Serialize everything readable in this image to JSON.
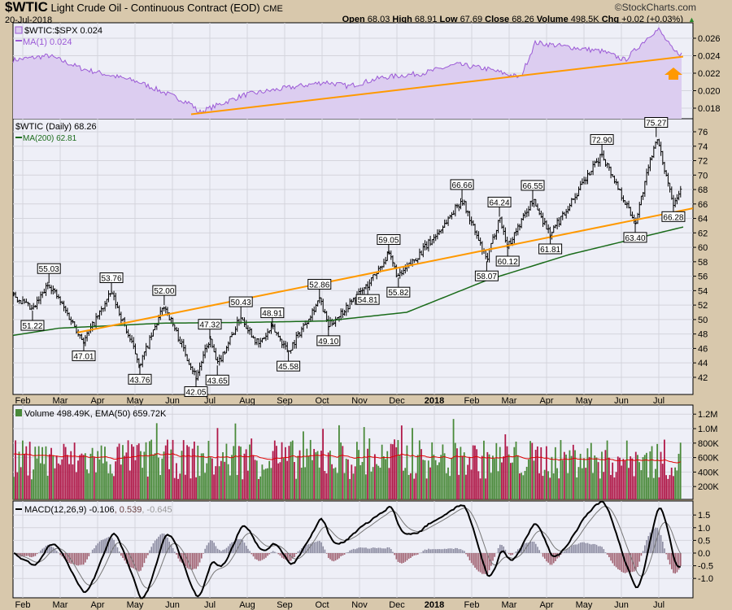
{
  "header": {
    "symbol": "$WTIC",
    "name": "Light Crude Oil - Continuous Contract (EOD)",
    "exchange": "CME",
    "date": "20-Jul-2018",
    "copyright": "©StockCharts.com",
    "quote": {
      "open_label": "Open",
      "open": "68.03",
      "high_label": "High",
      "high": "68.91",
      "low_label": "Low",
      "low": "67.69",
      "close_label": "Close",
      "close": "68.26",
      "volume_label": "Volume",
      "volume": "498.5K",
      "chg_label": "Chg",
      "chg": "+0.02 (+0.03%)"
    }
  },
  "colors": {
    "bg": "#d8c8ac",
    "panel": "#eeeff7",
    "ratio": "#9b59d6",
    "ratio_fill": "#dccdf0",
    "trend": "#ff9900",
    "ma200": "#1a6b1a",
    "up": "#4a8a3a",
    "down": "#b01848",
    "ema": "#e00000"
  },
  "chart_data": [
    {
      "type": "area",
      "panel": "ratio",
      "legend": "$WTIC:$SPX 0.024",
      "ma_legend": "MA(1) 0.024",
      "yticks": [
        "0.026",
        "0.024",
        "0.022",
        "0.020",
        "0.018"
      ],
      "ytick_values": [
        0.026,
        0.024,
        0.022,
        0.02,
        0.018
      ],
      "points_month_value": [
        [
          -0.26,
          0.0235
        ],
        [
          0.7,
          0.024
        ],
        [
          1.6,
          0.0225
        ],
        [
          3.1,
          0.021
        ],
        [
          4.5,
          0.0185
        ],
        [
          4.7,
          0.0175
        ],
        [
          5.9,
          0.0195
        ],
        [
          6.6,
          0.02
        ],
        [
          8.1,
          0.021
        ],
        [
          8.7,
          0.0205
        ],
        [
          9.6,
          0.0215
        ],
        [
          10.7,
          0.022
        ],
        [
          11.6,
          0.023
        ],
        [
          12.4,
          0.0225
        ],
        [
          13.3,
          0.0215
        ],
        [
          13.7,
          0.0255
        ],
        [
          14.6,
          0.025
        ],
        [
          15.5,
          0.0245
        ],
        [
          16.1,
          0.0235
        ],
        [
          16.8,
          0.0265
        ],
        [
          17.0,
          0.027
        ],
        [
          17.4,
          0.0245
        ],
        [
          17.6,
          0.0242
        ]
      ],
      "trendline": [
        [
          4.5,
          0.0173
        ],
        [
          17.65,
          0.0239
        ]
      ]
    },
    {
      "type": "ohlc",
      "panel": "price",
      "legend": "$WTIC (Daily) 68.26",
      "ma_legend": "MA(200) 62.81",
      "yticks": [
        "76",
        "74",
        "72",
        "70",
        "68",
        "66",
        "64",
        "62",
        "60",
        "58",
        "56",
        "54",
        "52",
        "50",
        "48",
        "46",
        "44",
        "42"
      ],
      "ytick_values": [
        76,
        74,
        72,
        70,
        68,
        66,
        64,
        62,
        60,
        58,
        56,
        54,
        52,
        50,
        48,
        46,
        44,
        42
      ],
      "xticks": [
        "Feb",
        "Mar",
        "Apr",
        "May",
        "Jun",
        "Jul",
        "Aug",
        "Sep",
        "Oct",
        "Nov",
        "Dec",
        "2018",
        "Feb",
        "Mar",
        "Apr",
        "May",
        "Jun",
        "Jul"
      ],
      "anchors_month_price": [
        [
          -0.26,
          53.5
        ],
        [
          0.26,
          51.22
        ],
        [
          0.7,
          55.03
        ],
        [
          1.63,
          47.01
        ],
        [
          2.37,
          53.76
        ],
        [
          3.13,
          43.76
        ],
        [
          3.78,
          52.0
        ],
        [
          4.63,
          42.05
        ],
        [
          5.0,
          47.32
        ],
        [
          5.2,
          43.65
        ],
        [
          5.83,
          50.43
        ],
        [
          6.3,
          46.5
        ],
        [
          6.67,
          48.91
        ],
        [
          7.1,
          45.58
        ],
        [
          7.93,
          52.86
        ],
        [
          8.17,
          49.1
        ],
        [
          9.22,
          54.81
        ],
        [
          9.78,
          59.05
        ],
        [
          10.04,
          55.82
        ],
        [
          10.5,
          58.5
        ],
        [
          11.1,
          62
        ],
        [
          11.74,
          66.66
        ],
        [
          12.4,
          58.07
        ],
        [
          12.74,
          64.24
        ],
        [
          12.96,
          60.12
        ],
        [
          13.63,
          66.55
        ],
        [
          14.1,
          61.81
        ],
        [
          15.48,
          72.9
        ],
        [
          16.37,
          63.4
        ],
        [
          16.93,
          75.27
        ],
        [
          17.39,
          66.28
        ],
        [
          17.61,
          68.26
        ]
      ],
      "labels": [
        [
          "51.22",
          0.26,
          "below"
        ],
        [
          "55.03",
          0.7,
          "above"
        ],
        [
          "47.01",
          1.63,
          "below"
        ],
        [
          "53.76",
          2.37,
          "above"
        ],
        [
          "43.76",
          3.13,
          "below"
        ],
        [
          "52.00",
          3.78,
          "above"
        ],
        [
          "42.05",
          4.63,
          "below"
        ],
        [
          "47.32",
          5.0,
          "above"
        ],
        [
          "43.65",
          5.2,
          "below"
        ],
        [
          "50.43",
          5.83,
          "above"
        ],
        [
          "48.91",
          6.67,
          "above"
        ],
        [
          "45.58",
          7.1,
          "below"
        ],
        [
          "52.86",
          7.93,
          "above"
        ],
        [
          "49.10",
          8.17,
          "below"
        ],
        [
          "54.81",
          9.22,
          "below"
        ],
        [
          "59.05",
          9.78,
          "above"
        ],
        [
          "55.82",
          10.04,
          "below"
        ],
        [
          "66.66",
          11.74,
          "above"
        ],
        [
          "58.07",
          12.4,
          "below"
        ],
        [
          "64.24",
          12.74,
          "above"
        ],
        [
          "60.12",
          12.96,
          "below"
        ],
        [
          "66.55",
          13.63,
          "above"
        ],
        [
          "61.81",
          14.1,
          "below"
        ],
        [
          "72.90",
          15.48,
          "above"
        ],
        [
          "63.40",
          16.37,
          "below"
        ],
        [
          "75.27",
          16.93,
          "above"
        ],
        [
          "66.28",
          17.39,
          "below"
        ]
      ],
      "ma200_month_price": [
        [
          -0.26,
          47.8
        ],
        [
          0.96,
          48.8
        ],
        [
          3.74,
          49.5
        ],
        [
          5.91,
          49.6
        ],
        [
          8.09,
          49.8
        ],
        [
          10.26,
          51
        ],
        [
          12.43,
          55.5
        ],
        [
          14.61,
          59
        ],
        [
          17.65,
          62.81
        ]
      ],
      "trendline": [
        [
          1.46,
          48.2
        ],
        [
          17.91,
          65.4
        ]
      ]
    },
    {
      "type": "bar",
      "panel": "volume",
      "legend": "Volume 498.49K, EMA(50) 659.72K",
      "yticks": [
        "1.2M",
        "1.0M",
        "800K",
        "600K",
        "400K",
        "200K"
      ],
      "ytick_values": [
        1.2,
        1.0,
        0.8,
        0.6,
        0.4,
        0.2
      ],
      "last_volume_k": 498.49,
      "ema50_k": 659.72
    },
    {
      "type": "line",
      "panel": "macd",
      "legend_main": "MACD(12,26,9) -0.106",
      "legend_signal": ", 0.539",
      "legend_hist": ", -0.645",
      "yticks": [
        "1.5",
        "1.0",
        "0.5",
        "0.0",
        "-0.5",
        "-1.0"
      ],
      "ytick_values": [
        1.5,
        1.0,
        0.5,
        0.0,
        -0.5,
        -1.0
      ],
      "macd": -0.106,
      "signal": 0.539,
      "histogram": -0.645
    }
  ]
}
